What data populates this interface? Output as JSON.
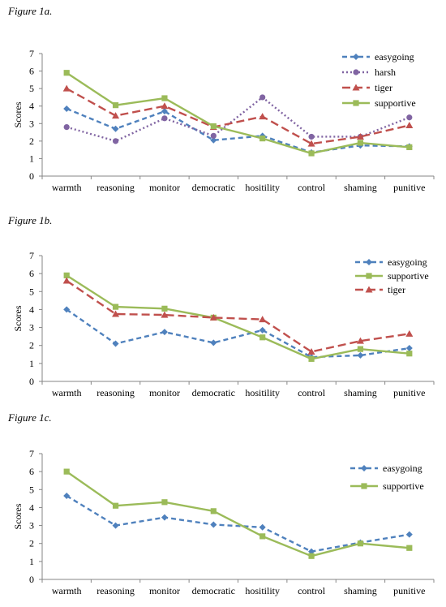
{
  "chart_data": [
    {
      "type": "line",
      "title": "Figure 1a.",
      "ylabel": "Scores",
      "xlabel": "",
      "ylim": [
        0,
        7
      ],
      "yticks": [
        "0",
        "1",
        "2",
        "3",
        "4",
        "5",
        "6",
        "7"
      ],
      "categories": [
        "warmth",
        "reasoning",
        "monitor",
        "democratic",
        "hositility",
        "control",
        "shaming",
        "punitive"
      ],
      "legend": "top-right",
      "series": [
        {
          "name": "easygoing",
          "values": [
            3.85,
            2.7,
            3.7,
            2.05,
            2.3,
            1.35,
            1.75,
            1.7
          ],
          "color": "#4f81bd",
          "dash": "6,4",
          "marker": "diamond"
        },
        {
          "name": "harsh",
          "values": [
            2.8,
            2.0,
            3.3,
            2.3,
            4.5,
            2.25,
            2.25,
            3.35
          ],
          "color": "#8064a2",
          "dash": "2,3",
          "marker": "circle"
        },
        {
          "name": "tiger",
          "values": [
            5.0,
            3.45,
            4.0,
            2.8,
            3.4,
            1.85,
            2.25,
            2.9
          ],
          "color": "#c0504d",
          "dash": "10,5",
          "marker": "triangle"
        },
        {
          "name": "supportive",
          "values": [
            5.9,
            4.05,
            4.45,
            2.85,
            2.15,
            1.3,
            1.9,
            1.65
          ],
          "color": "#9bbb59",
          "dash": "",
          "marker": "square"
        }
      ]
    },
    {
      "type": "line",
      "title": "Figure 1b.",
      "ylabel": "Scores",
      "xlabel": "",
      "ylim": [
        0,
        7
      ],
      "yticks": [
        "0",
        "1",
        "2",
        "3",
        "4",
        "5",
        "6",
        "7"
      ],
      "categories": [
        "warmth",
        "reasoning",
        "monitor",
        "democratic",
        "hositility",
        "control",
        "shaming",
        "punitive"
      ],
      "legend": "top-right",
      "series": [
        {
          "name": "easygoing",
          "values": [
            4.0,
            2.1,
            2.75,
            2.15,
            2.85,
            1.35,
            1.45,
            1.85
          ],
          "color": "#4f81bd",
          "dash": "6,4",
          "marker": "diamond"
        },
        {
          "name": "supportive",
          "values": [
            5.9,
            4.15,
            4.05,
            3.55,
            2.45,
            1.25,
            1.8,
            1.55
          ],
          "color": "#9bbb59",
          "dash": "",
          "marker": "square"
        },
        {
          "name": "tiger",
          "values": [
            5.6,
            3.75,
            3.7,
            3.55,
            3.45,
            1.65,
            2.25,
            2.65
          ],
          "color": "#c0504d",
          "dash": "10,5",
          "marker": "triangle"
        }
      ]
    },
    {
      "type": "line",
      "title": "Figure 1c.",
      "ylabel": "Scores",
      "xlabel": "",
      "ylim": [
        0,
        7
      ],
      "yticks": [
        "0",
        "1",
        "2",
        "3",
        "4",
        "5",
        "6",
        "7"
      ],
      "categories": [
        "warmth",
        "reasoning",
        "monitor",
        "democratic",
        "hositility",
        "control",
        "shaming",
        "punitive"
      ],
      "legend": "top-right",
      "series": [
        {
          "name": "easygoing",
          "values": [
            4.65,
            3.0,
            3.45,
            3.05,
            2.9,
            1.55,
            2.05,
            2.5
          ],
          "color": "#4f81bd",
          "dash": "6,4",
          "marker": "diamond"
        },
        {
          "name": "supportive",
          "values": [
            6.0,
            4.1,
            4.3,
            3.8,
            2.4,
            1.3,
            2.0,
            1.75
          ],
          "color": "#9bbb59",
          "dash": "",
          "marker": "square"
        }
      ]
    }
  ]
}
